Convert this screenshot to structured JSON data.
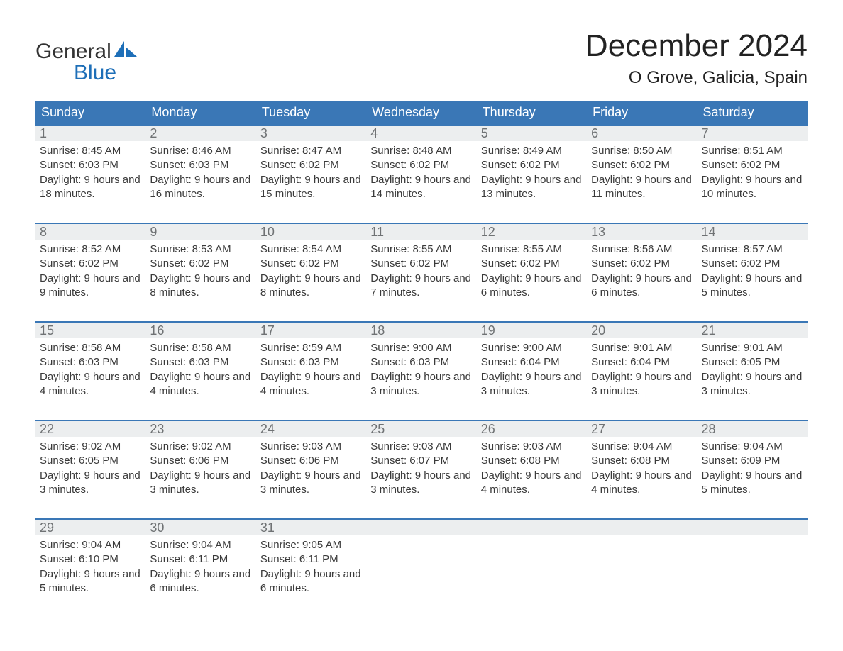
{
  "logo": {
    "top": "General",
    "bottom": "Blue"
  },
  "title": "December 2024",
  "location": "O Grove, Galicia, Spain",
  "colors": {
    "brand_blue": "#3a77b6",
    "logo_blue": "#1e6fb8",
    "daynum_bg": "#eceeef",
    "daynum_fg": "#6f7274",
    "text": "#3a3a3a"
  },
  "day_headers": [
    "Sunday",
    "Monday",
    "Tuesday",
    "Wednesday",
    "Thursday",
    "Friday",
    "Saturday"
  ],
  "weeks": [
    [
      {
        "n": "1",
        "sunrise": "8:45 AM",
        "sunset": "6:03 PM",
        "daylight": "9 hours and 18 minutes."
      },
      {
        "n": "2",
        "sunrise": "8:46 AM",
        "sunset": "6:03 PM",
        "daylight": "9 hours and 16 minutes."
      },
      {
        "n": "3",
        "sunrise": "8:47 AM",
        "sunset": "6:02 PM",
        "daylight": "9 hours and 15 minutes."
      },
      {
        "n": "4",
        "sunrise": "8:48 AM",
        "sunset": "6:02 PM",
        "daylight": "9 hours and 14 minutes."
      },
      {
        "n": "5",
        "sunrise": "8:49 AM",
        "sunset": "6:02 PM",
        "daylight": "9 hours and 13 minutes."
      },
      {
        "n": "6",
        "sunrise": "8:50 AM",
        "sunset": "6:02 PM",
        "daylight": "9 hours and 11 minutes."
      },
      {
        "n": "7",
        "sunrise": "8:51 AM",
        "sunset": "6:02 PM",
        "daylight": "9 hours and 10 minutes."
      }
    ],
    [
      {
        "n": "8",
        "sunrise": "8:52 AM",
        "sunset": "6:02 PM",
        "daylight": "9 hours and 9 minutes."
      },
      {
        "n": "9",
        "sunrise": "8:53 AM",
        "sunset": "6:02 PM",
        "daylight": "9 hours and 8 minutes."
      },
      {
        "n": "10",
        "sunrise": "8:54 AM",
        "sunset": "6:02 PM",
        "daylight": "9 hours and 8 minutes."
      },
      {
        "n": "11",
        "sunrise": "8:55 AM",
        "sunset": "6:02 PM",
        "daylight": "9 hours and 7 minutes."
      },
      {
        "n": "12",
        "sunrise": "8:55 AM",
        "sunset": "6:02 PM",
        "daylight": "9 hours and 6 minutes."
      },
      {
        "n": "13",
        "sunrise": "8:56 AM",
        "sunset": "6:02 PM",
        "daylight": "9 hours and 6 minutes."
      },
      {
        "n": "14",
        "sunrise": "8:57 AM",
        "sunset": "6:02 PM",
        "daylight": "9 hours and 5 minutes."
      }
    ],
    [
      {
        "n": "15",
        "sunrise": "8:58 AM",
        "sunset": "6:03 PM",
        "daylight": "9 hours and 4 minutes."
      },
      {
        "n": "16",
        "sunrise": "8:58 AM",
        "sunset": "6:03 PM",
        "daylight": "9 hours and 4 minutes."
      },
      {
        "n": "17",
        "sunrise": "8:59 AM",
        "sunset": "6:03 PM",
        "daylight": "9 hours and 4 minutes."
      },
      {
        "n": "18",
        "sunrise": "9:00 AM",
        "sunset": "6:03 PM",
        "daylight": "9 hours and 3 minutes."
      },
      {
        "n": "19",
        "sunrise": "9:00 AM",
        "sunset": "6:04 PM",
        "daylight": "9 hours and 3 minutes."
      },
      {
        "n": "20",
        "sunrise": "9:01 AM",
        "sunset": "6:04 PM",
        "daylight": "9 hours and 3 minutes."
      },
      {
        "n": "21",
        "sunrise": "9:01 AM",
        "sunset": "6:05 PM",
        "daylight": "9 hours and 3 minutes."
      }
    ],
    [
      {
        "n": "22",
        "sunrise": "9:02 AM",
        "sunset": "6:05 PM",
        "daylight": "9 hours and 3 minutes."
      },
      {
        "n": "23",
        "sunrise": "9:02 AM",
        "sunset": "6:06 PM",
        "daylight": "9 hours and 3 minutes."
      },
      {
        "n": "24",
        "sunrise": "9:03 AM",
        "sunset": "6:06 PM",
        "daylight": "9 hours and 3 minutes."
      },
      {
        "n": "25",
        "sunrise": "9:03 AM",
        "sunset": "6:07 PM",
        "daylight": "9 hours and 3 minutes."
      },
      {
        "n": "26",
        "sunrise": "9:03 AM",
        "sunset": "6:08 PM",
        "daylight": "9 hours and 4 minutes."
      },
      {
        "n": "27",
        "sunrise": "9:04 AM",
        "sunset": "6:08 PM",
        "daylight": "9 hours and 4 minutes."
      },
      {
        "n": "28",
        "sunrise": "9:04 AM",
        "sunset": "6:09 PM",
        "daylight": "9 hours and 5 minutes."
      }
    ],
    [
      {
        "n": "29",
        "sunrise": "9:04 AM",
        "sunset": "6:10 PM",
        "daylight": "9 hours and 5 minutes."
      },
      {
        "n": "30",
        "sunrise": "9:04 AM",
        "sunset": "6:11 PM",
        "daylight": "9 hours and 6 minutes."
      },
      {
        "n": "31",
        "sunrise": "9:05 AM",
        "sunset": "6:11 PM",
        "daylight": "9 hours and 6 minutes."
      },
      null,
      null,
      null,
      null
    ]
  ],
  "labels": {
    "sunrise_prefix": "Sunrise: ",
    "sunset_prefix": "Sunset: ",
    "daylight_prefix": "Daylight: "
  }
}
